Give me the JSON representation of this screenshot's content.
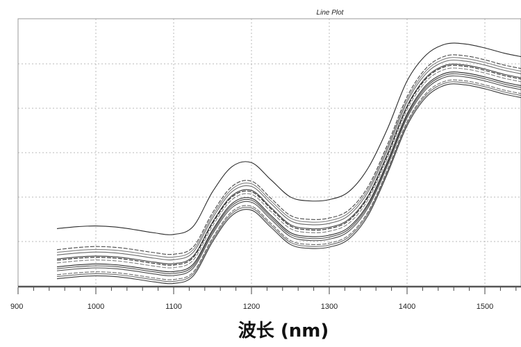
{
  "chart_data": {
    "type": "line",
    "title": "Line Plot",
    "xlabel": "波长 (nm)",
    "ylabel": "",
    "xlim": [
      900,
      1560
    ],
    "ylim": [
      0,
      1
    ],
    "grid": true,
    "legend": "none",
    "x_ticks": [
      900,
      1000,
      1100,
      1200,
      1300,
      1400,
      1500
    ],
    "x_tick_labels": [
      "900",
      "1000",
      "1100",
      "1200",
      "1300",
      "1400",
      "1500"
    ],
    "line_color": "#3a3a3a",
    "x": [
      950,
      975,
      1000,
      1025,
      1050,
      1075,
      1100,
      1125,
      1150,
      1175,
      1200,
      1225,
      1250,
      1275,
      1300,
      1325,
      1350,
      1375,
      1400,
      1425,
      1450,
      1475,
      1500,
      1525,
      1550
    ],
    "series": [
      {
        "values": [
          0.22,
          0.227,
          0.23,
          0.226,
          0.216,
          0.204,
          0.198,
          0.228,
          0.36,
          0.455,
          0.47,
          0.405,
          0.34,
          0.325,
          0.33,
          0.36,
          0.45,
          0.6,
          0.78,
          0.88,
          0.92,
          0.92,
          0.905,
          0.885,
          0.87
        ]
      },
      {
        "values": [
          0.14,
          0.148,
          0.152,
          0.149,
          0.14,
          0.129,
          0.123,
          0.15,
          0.28,
          0.38,
          0.4,
          0.335,
          0.27,
          0.255,
          0.26,
          0.29,
          0.38,
          0.54,
          0.72,
          0.83,
          0.875,
          0.875,
          0.86,
          0.84,
          0.825
        ]
      },
      {
        "values": [
          0.12,
          0.127,
          0.131,
          0.128,
          0.119,
          0.108,
          0.102,
          0.13,
          0.26,
          0.36,
          0.38,
          0.315,
          0.25,
          0.235,
          0.24,
          0.27,
          0.36,
          0.52,
          0.7,
          0.81,
          0.855,
          0.855,
          0.84,
          0.82,
          0.805
        ]
      },
      {
        "values": [
          0.105,
          0.112,
          0.116,
          0.113,
          0.104,
          0.093,
          0.087,
          0.115,
          0.245,
          0.345,
          0.365,
          0.3,
          0.235,
          0.22,
          0.225,
          0.255,
          0.345,
          0.505,
          0.685,
          0.795,
          0.84,
          0.84,
          0.825,
          0.805,
          0.79
        ]
      },
      {
        "values": [
          0.09,
          0.097,
          0.101,
          0.098,
          0.089,
          0.078,
          0.072,
          0.1,
          0.23,
          0.33,
          0.35,
          0.285,
          0.22,
          0.205,
          0.21,
          0.24,
          0.33,
          0.49,
          0.67,
          0.78,
          0.825,
          0.825,
          0.81,
          0.79,
          0.775
        ]
      },
      {
        "values": [
          0.075,
          0.082,
          0.086,
          0.083,
          0.074,
          0.063,
          0.057,
          0.085,
          0.215,
          0.315,
          0.335,
          0.27,
          0.205,
          0.19,
          0.195,
          0.225,
          0.315,
          0.475,
          0.655,
          0.765,
          0.81,
          0.81,
          0.795,
          0.775,
          0.76
        ]
      },
      {
        "values": [
          0.06,
          0.067,
          0.071,
          0.068,
          0.059,
          0.048,
          0.042,
          0.07,
          0.2,
          0.3,
          0.32,
          0.255,
          0.19,
          0.175,
          0.18,
          0.21,
          0.3,
          0.46,
          0.64,
          0.75,
          0.795,
          0.795,
          0.78,
          0.76,
          0.745
        ]
      },
      {
        "values": [
          0.045,
          0.052,
          0.056,
          0.053,
          0.044,
          0.033,
          0.027,
          0.055,
          0.185,
          0.285,
          0.305,
          0.24,
          0.175,
          0.16,
          0.165,
          0.195,
          0.285,
          0.445,
          0.625,
          0.735,
          0.78,
          0.78,
          0.765,
          0.745,
          0.73
        ]
      },
      {
        "values": [
          0.03,
          0.037,
          0.041,
          0.038,
          0.029,
          0.018,
          0.012,
          0.04,
          0.17,
          0.27,
          0.29,
          0.225,
          0.16,
          0.145,
          0.15,
          0.18,
          0.27,
          0.43,
          0.61,
          0.72,
          0.765,
          0.765,
          0.75,
          0.73,
          0.715
        ]
      },
      {
        "values": [
          0.13,
          0.137,
          0.141,
          0.138,
          0.129,
          0.118,
          0.112,
          0.14,
          0.27,
          0.37,
          0.39,
          0.325,
          0.26,
          0.245,
          0.25,
          0.28,
          0.37,
          0.53,
          0.71,
          0.82,
          0.865,
          0.865,
          0.85,
          0.83,
          0.815
        ]
      },
      {
        "values": [
          0.1,
          0.107,
          0.111,
          0.108,
          0.099,
          0.088,
          0.082,
          0.11,
          0.24,
          0.34,
          0.36,
          0.295,
          0.23,
          0.215,
          0.22,
          0.25,
          0.34,
          0.5,
          0.68,
          0.79,
          0.835,
          0.835,
          0.82,
          0.8,
          0.785
        ]
      },
      {
        "values": [
          0.068,
          0.075,
          0.079,
          0.076,
          0.067,
          0.056,
          0.05,
          0.078,
          0.208,
          0.308,
          0.328,
          0.263,
          0.198,
          0.183,
          0.188,
          0.218,
          0.308,
          0.468,
          0.648,
          0.758,
          0.803,
          0.803,
          0.788,
          0.768,
          0.753
        ]
      },
      {
        "values": [
          0.038,
          0.045,
          0.049,
          0.046,
          0.037,
          0.026,
          0.02,
          0.048,
          0.178,
          0.278,
          0.298,
          0.233,
          0.168,
          0.153,
          0.158,
          0.188,
          0.278,
          0.438,
          0.618,
          0.728,
          0.773,
          0.773,
          0.758,
          0.738,
          0.723
        ]
      }
    ]
  }
}
